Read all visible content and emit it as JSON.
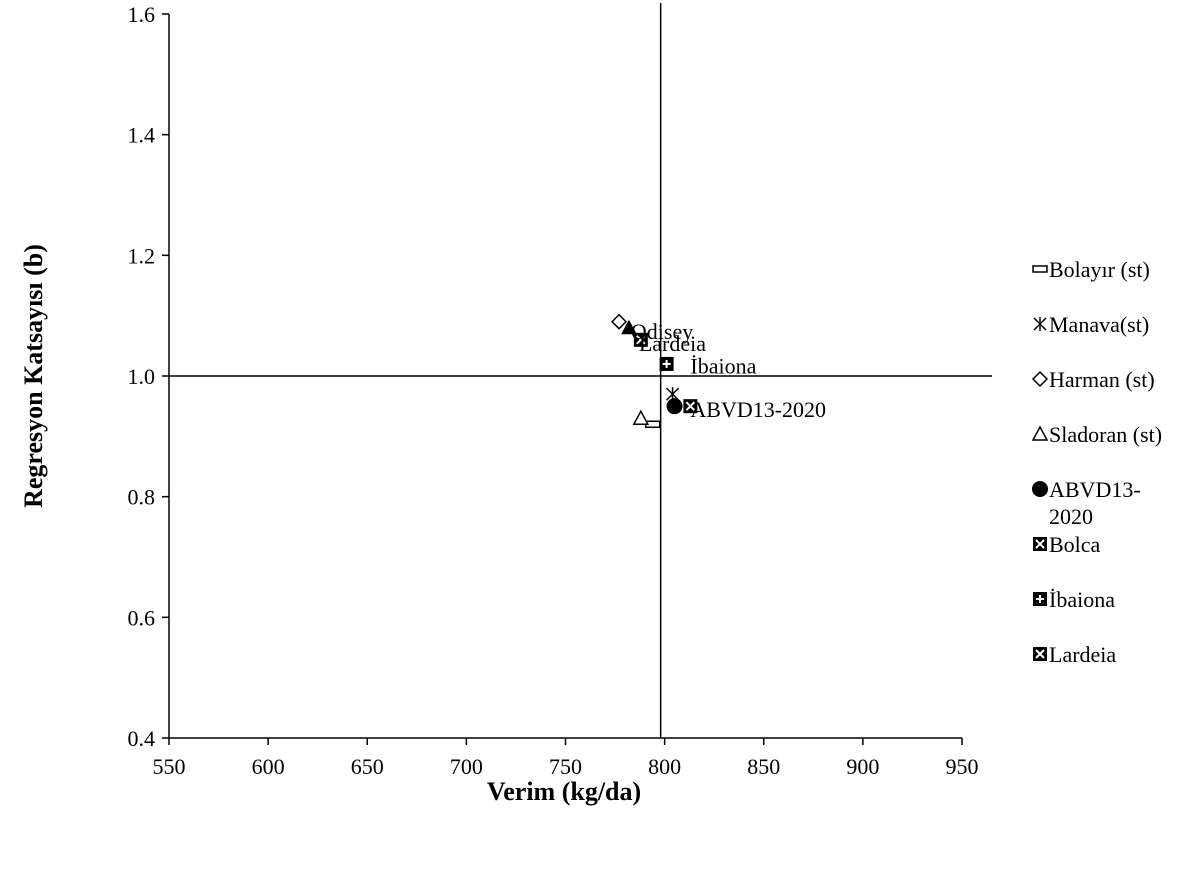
{
  "chart_data": {
    "type": "scatter",
    "xlabel": "Verim (kg/da)",
    "ylabel": "Regresyon Katsayısı (b)",
    "xlim": [
      550,
      950
    ],
    "ylim": [
      0.4,
      1.6
    ],
    "x_ticks": [
      "550",
      "600",
      "650",
      "700",
      "750",
      "800",
      "850",
      "900",
      "950"
    ],
    "y_ticks": [
      "0.4",
      "0.6",
      "0.8",
      "1.0",
      "1.2",
      "1.4",
      "1.6"
    ],
    "reference_lines": {
      "x": 798,
      "y": 1.0
    },
    "series": [
      {
        "name": "Bolayır (st)",
        "marker": "dash-box",
        "points": [
          [
            794,
            0.92
          ]
        ]
      },
      {
        "name": "Manava(st)",
        "marker": "asterisk",
        "points": [
          [
            804,
            0.97
          ]
        ]
      },
      {
        "name": "Harman (st)",
        "marker": "diamond",
        "points": [
          [
            777,
            1.09
          ]
        ]
      },
      {
        "name": "Sladoran (st)",
        "marker": "triangle-open",
        "points": [
          [
            788,
            0.93
          ]
        ]
      },
      {
        "name": "ABVD13-2020",
        "marker": "circle-filled",
        "points": [
          [
            805,
            0.95
          ]
        ]
      },
      {
        "name": "Bolca",
        "marker": "x-box",
        "points": [
          [
            813,
            0.95
          ]
        ]
      },
      {
        "name": "İbaiona",
        "marker": "plus-box",
        "points": [
          [
            801,
            1.02
          ]
        ]
      },
      {
        "name": "Lardeia",
        "marker": "x-box",
        "points": [
          [
            788,
            1.06
          ]
        ]
      },
      {
        "name": "",
        "marker": "triangle-filled",
        "points": [
          [
            782,
            1.08
          ]
        ]
      }
    ],
    "annotations": [
      {
        "text": "Odisey",
        "x": 783,
        "y": 1.075
      },
      {
        "text": "Lardeia",
        "x": 787,
        "y": 1.055
      },
      {
        "text": "İbaiona",
        "x": 813,
        "y": 1.017
      },
      {
        "text": "ABVD13-2020",
        "x": 813,
        "y": 0.945
      }
    ],
    "legend": {
      "position": "right",
      "entries": [
        {
          "lines": [
            "Bolayır (st)"
          ],
          "marker": "dash-box"
        },
        {
          "lines": [
            "Manava(st)"
          ],
          "marker": "asterisk"
        },
        {
          "lines": [
            "Harman (st)"
          ],
          "marker": "diamond"
        },
        {
          "lines": [
            "Sladoran (st)"
          ],
          "marker": "triangle-open"
        },
        {
          "lines": [
            "ABVD13-",
            "2020"
          ],
          "marker": "circle-filled"
        },
        {
          "lines": [
            "Bolca"
          ],
          "marker": "x-box"
        },
        {
          "lines": [
            "İbaiona"
          ],
          "marker": "plus-box"
        },
        {
          "lines": [
            "Lardeia"
          ],
          "marker": "x-box"
        }
      ]
    }
  }
}
